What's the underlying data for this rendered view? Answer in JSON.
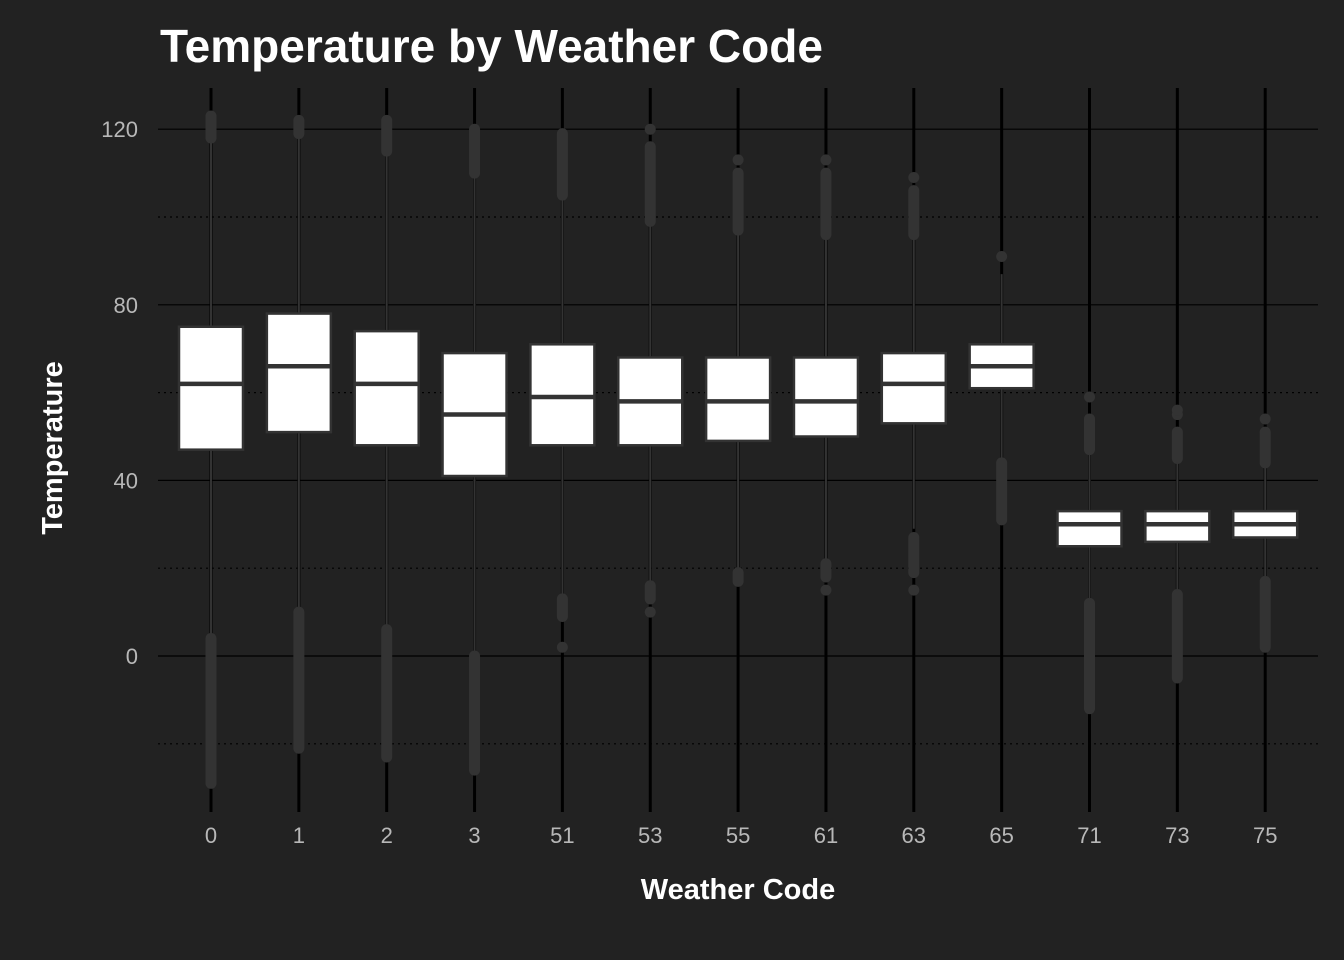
{
  "chart_data": {
    "type": "boxplot",
    "title": "Temperature by Weather Code",
    "xlabel": "Weather Code",
    "ylabel": "Temperature",
    "ylim": [
      -35,
      130
    ],
    "yticks": [
      0,
      40,
      80,
      120
    ],
    "grid": true,
    "legend": "none",
    "colors": {
      "background": "#222222",
      "grid_major": "#000000",
      "grid_minor": "#000000",
      "box_fill": "#ffffff",
      "box_border": "#333333",
      "whisker": "#333333",
      "outlier": "#333333",
      "text": "#ffffff",
      "tick_text": "#b8b8b8"
    },
    "categories": [
      "0",
      "1",
      "2",
      "3",
      "51",
      "53",
      "55",
      "61",
      "63",
      "65",
      "71",
      "73",
      "75"
    ],
    "boxes": [
      {
        "category": "0",
        "q1": 47,
        "median": 62,
        "q3": 75,
        "whisker_low": 5,
        "whisker_high": 117,
        "outlier_ranges": [
          [
            118,
            123
          ],
          [
            -29,
            4
          ]
        ],
        "outliers": []
      },
      {
        "category": "1",
        "q1": 51,
        "median": 66,
        "q3": 78,
        "whisker_low": 11,
        "whisker_high": 118,
        "outlier_ranges": [
          [
            119,
            122
          ],
          [
            -21,
            10
          ]
        ],
        "outliers": []
      },
      {
        "category": "2",
        "q1": 48,
        "median": 62,
        "q3": 74,
        "whisker_low": 7,
        "whisker_high": 114,
        "outlier_ranges": [
          [
            115,
            122
          ],
          [
            -23,
            6
          ]
        ],
        "outliers": []
      },
      {
        "category": "3",
        "q1": 41,
        "median": 55,
        "q3": 69,
        "whisker_low": 1,
        "whisker_high": 109,
        "outlier_ranges": [
          [
            110,
            120
          ],
          [
            -26,
            0
          ]
        ],
        "outliers": []
      },
      {
        "category": "51",
        "q1": 48,
        "median": 59,
        "q3": 71,
        "whisker_low": 14,
        "whisker_high": 104,
        "outlier_ranges": [
          [
            105,
            119
          ],
          [
            9,
            13
          ]
        ],
        "outliers": [
          2
        ]
      },
      {
        "category": "53",
        "q1": 48,
        "median": 58,
        "q3": 68,
        "whisker_low": 17,
        "whisker_high": 98,
        "outlier_ranges": [
          [
            99,
            116
          ],
          [
            13,
            16
          ]
        ],
        "outliers": [
          10,
          120
        ]
      },
      {
        "category": "55",
        "q1": 49,
        "median": 58,
        "q3": 68,
        "whisker_low": 20,
        "whisker_high": 96,
        "outlier_ranges": [
          [
            97,
            110
          ],
          [
            17,
            19
          ]
        ],
        "outliers": [
          113
        ]
      },
      {
        "category": "61",
        "q1": 50,
        "median": 58,
        "q3": 68,
        "whisker_low": 22,
        "whisker_high": 95,
        "outlier_ranges": [
          [
            96,
            110
          ],
          [
            18,
            21
          ]
        ],
        "outliers": [
          15,
          113
        ]
      },
      {
        "category": "63",
        "q1": 53,
        "median": 62,
        "q3": 69,
        "whisker_low": 29,
        "whisker_high": 95,
        "outlier_ranges": [
          [
            96,
            106
          ],
          [
            19,
            27
          ]
        ],
        "outliers": [
          15,
          109
        ]
      },
      {
        "category": "65",
        "q1": 61,
        "median": 66,
        "q3": 71,
        "whisker_low": 45,
        "whisker_high": 87,
        "outlier_ranges": [
          [
            31,
            44
          ]
        ],
        "outliers": [
          91
        ]
      },
      {
        "category": "71",
        "q1": 25,
        "median": 30,
        "q3": 33,
        "whisker_low": 13,
        "whisker_high": 46,
        "outlier_ranges": [
          [
            47,
            54
          ],
          [
            -12,
            12
          ]
        ],
        "outliers": [
          59
        ]
      },
      {
        "category": "73",
        "q1": 26,
        "median": 30,
        "q3": 33,
        "whisker_low": 15,
        "whisker_high": 44,
        "outlier_ranges": [
          [
            45,
            51
          ],
          [
            -5,
            14
          ]
        ],
        "outliers": [
          55,
          56
        ]
      },
      {
        "category": "75",
        "q1": 27,
        "median": 30,
        "q3": 33,
        "whisker_low": 18,
        "whisker_high": 43,
        "outlier_ranges": [
          [
            44,
            51
          ],
          [
            2,
            17
          ]
        ],
        "outliers": [
          54
        ]
      }
    ]
  }
}
